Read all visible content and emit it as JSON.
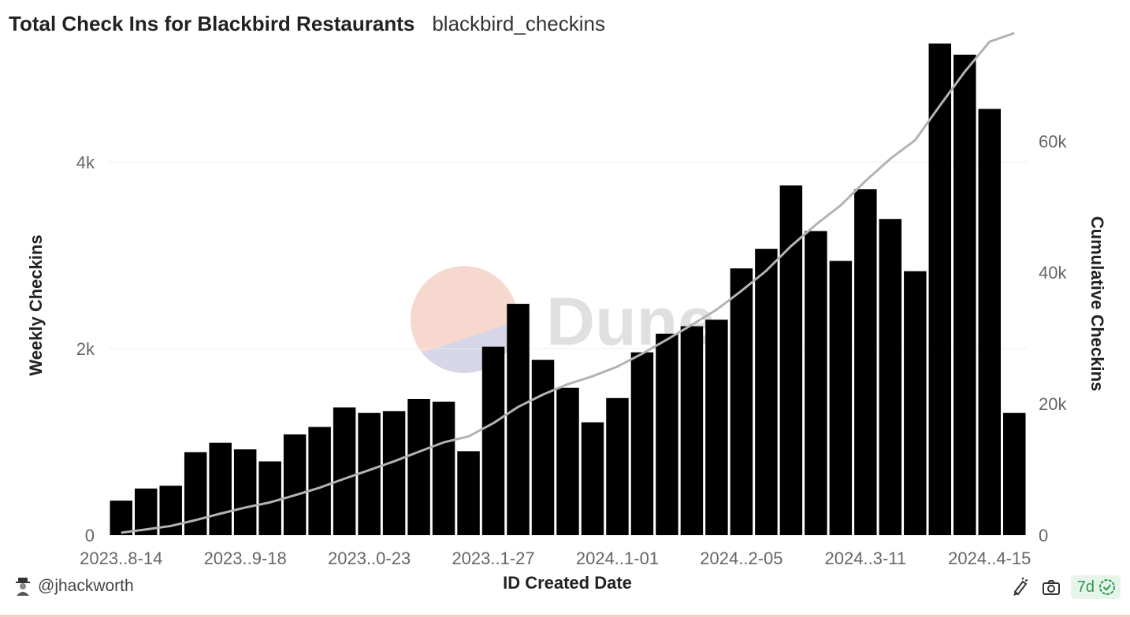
{
  "header": {
    "title": "Total Check Ins for Blackbird Restaurants",
    "subtitle": "blackbird_checkins"
  },
  "watermark": {
    "text": "Dune"
  },
  "footer": {
    "username": "@jhackworth",
    "refresh_badge": "7d",
    "icons": [
      "avatar-icon",
      "edit-icon",
      "camera-icon",
      "check-badge-icon"
    ],
    "badge_color": "#2e9a4c"
  },
  "colors": {
    "bars": "#000000",
    "line": "#b3b3b3",
    "grid": "#ececec"
  },
  "chart_data": {
    "type": "bar",
    "xlabel": "ID Created Date",
    "ylabel": "Weekly Checkins",
    "y2label": "Cumulative Checkins",
    "ylim": [
      0,
      5400
    ],
    "y_ticks": [
      0,
      2000,
      4000
    ],
    "y_tick_labels": [
      "0",
      "2k",
      "4k"
    ],
    "y2lim": [
      0,
      76700
    ],
    "y2_ticks": [
      0,
      20000,
      40000,
      60000
    ],
    "y2_tick_labels": [
      "0",
      "20k",
      "40k",
      "60k"
    ],
    "x_tick_labels": [
      "2023..8-14",
      "2023..9-18",
      "2023..0-23",
      "2023..1-27",
      "2024..1-01",
      "2024..2-05",
      "2024..3-11",
      "2024..4-15"
    ],
    "x_tick_indices": [
      0,
      5,
      10,
      15,
      20,
      25,
      30,
      35
    ],
    "grid": true,
    "series": [
      {
        "name": "Weekly Checkins",
        "type": "bar",
        "values": [
          370,
          500,
          530,
          890,
          990,
          920,
          790,
          1080,
          1160,
          1370,
          1310,
          1330,
          1460,
          1430,
          900,
          2020,
          2480,
          1880,
          1580,
          1210,
          1470,
          1960,
          2160,
          2240,
          2310,
          2860,
          3070,
          3750,
          3260,
          2940,
          3710,
          3390,
          2830,
          5270,
          5150,
          4570,
          1310
        ]
      },
      {
        "name": "Cumulative Checkins",
        "type": "line",
        "axis": "right",
        "values": [
          370,
          870,
          1400,
          2290,
          3280,
          4200,
          4990,
          6070,
          7230,
          8600,
          9910,
          11240,
          12700,
          14130,
          15030,
          17050,
          19530,
          21410,
          22990,
          24200,
          25670,
          27630,
          29790,
          32030,
          34340,
          37200,
          40270,
          44020,
          47280,
          50220,
          53930,
          57320,
          60150,
          65420,
          70570,
          75140,
          76450
        ]
      }
    ]
  }
}
